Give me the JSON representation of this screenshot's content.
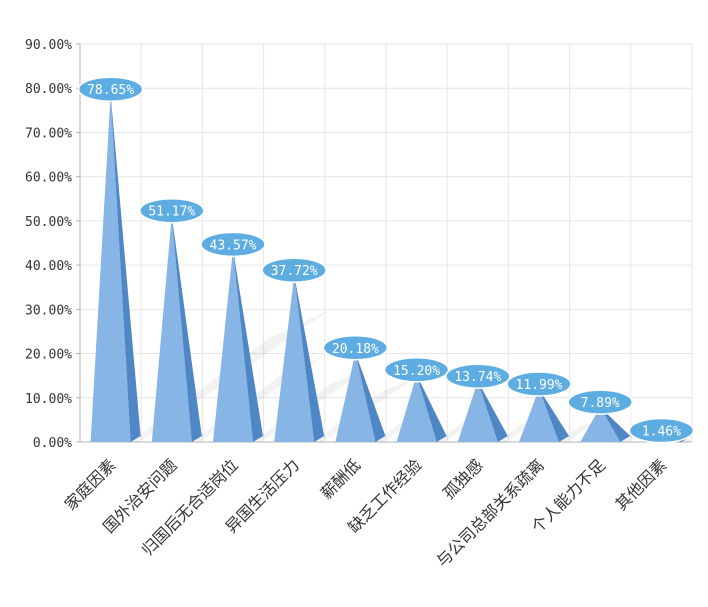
{
  "chart_data": {
    "type": "bar",
    "categories": [
      "家庭因素",
      "国外治安问题",
      "归国后无合适岗位",
      "异国生活压力",
      "薪酬低",
      "缺乏工作经验",
      "孤独感",
      "与公司总部关系疏离",
      "个人能力不足",
      "其他因素"
    ],
    "values": [
      78.65,
      51.17,
      43.57,
      37.72,
      20.18,
      15.2,
      13.74,
      11.99,
      7.89,
      1.46
    ],
    "data_labels": [
      "78.65%",
      "51.17%",
      "43.57%",
      "37.72%",
      "20.18%",
      "15.20%",
      "13.74%",
      "11.99%",
      "7.89%",
      "1.46%"
    ],
    "y_ticks": [
      "0.00%",
      "10.00%",
      "20.00%",
      "30.00%",
      "40.00%",
      "50.00%",
      "60.00%",
      "70.00%",
      "80.00%",
      "90.00%"
    ],
    "ylim": [
      0,
      90
    ],
    "grid": true,
    "legend": "none",
    "colors": {
      "pyramid_front": "#86b5e6",
      "pyramid_side": "#4f86c6",
      "label_bubble": "#5dade2",
      "grid": "#e6e6e6",
      "axis": "#b3b3b3"
    }
  }
}
